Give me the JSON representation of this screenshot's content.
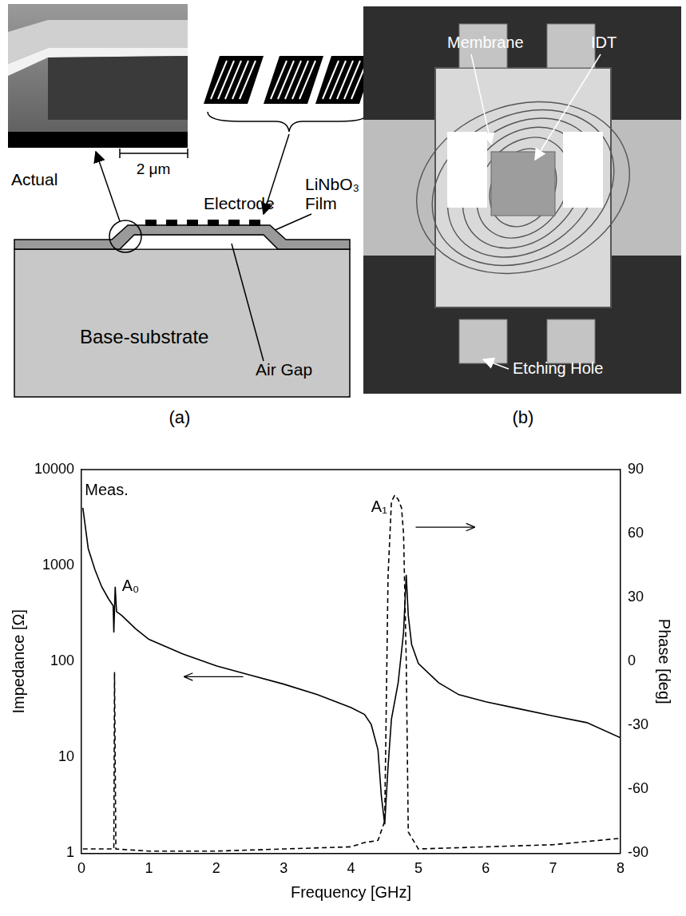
{
  "panel_a": {
    "label": "(a)",
    "inset_label": "Actual",
    "scale_bar": "2 μm",
    "electrode": "Electrode",
    "film": "LiNbO₃ Film",
    "substrate": "Base-substrate",
    "gap": "Air Gap"
  },
  "panel_b": {
    "label": "(b)",
    "membrane": "Membrane",
    "idt": "IDT",
    "hole": "Etching Hole"
  },
  "chart_data": {
    "type": "line",
    "xlabel": "Frequency [GHz]",
    "ylabel": "Impedance [Ω]",
    "y2label": "Phase [deg]",
    "xlim": [
      0,
      8
    ],
    "xticks": [
      0,
      1,
      2,
      3,
      4,
      5,
      6,
      7,
      8
    ],
    "ylim": [
      1,
      10000
    ],
    "yticks": [
      1,
      10,
      100,
      1000,
      10000
    ],
    "log": "y",
    "y2lim": [
      -90,
      90
    ],
    "y2ticks": [
      -90,
      -60,
      -30,
      0,
      30,
      60,
      90
    ],
    "grid": false,
    "series": [
      {
        "color": "#000000",
        "line_style": "solid",
        "x": [
          0.02,
          0.1,
          0.2,
          0.3,
          0.4,
          0.47,
          0.48,
          0.5,
          0.52,
          0.6,
          0.8,
          1.0,
          1.5,
          2.0,
          2.5,
          3.0,
          3.5,
          4.0,
          4.2,
          4.3,
          4.4,
          4.45,
          4.5,
          4.55,
          4.6,
          4.7,
          4.78,
          4.82,
          4.85,
          4.9,
          5.0,
          5.3,
          5.6,
          6.0,
          6.5,
          7.0,
          7.5,
          8.0
        ],
        "values": [
          4000,
          1500,
          900,
          600,
          450,
          380,
          200,
          600,
          330,
          300,
          220,
          170,
          120,
          90,
          72,
          58,
          45,
          33,
          28,
          22,
          12,
          4,
          2,
          8,
          25,
          60,
          200,
          800,
          300,
          150,
          95,
          60,
          45,
          38,
          32,
          27,
          23,
          16
        ]
      },
      {
        "color": "#000000",
        "line_style": "dashed",
        "axis": "y2",
        "x": [
          0.02,
          0.45,
          0.48,
          0.49,
          0.51,
          1.0,
          2.0,
          3.0,
          4.0,
          4.2,
          4.4,
          4.5,
          4.55,
          4.6,
          4.65,
          4.7,
          4.75,
          4.78,
          4.82,
          4.85,
          5.0,
          6.0,
          7.0,
          8.0
        ],
        "values": [
          -88,
          -88,
          -88,
          -5,
          -88,
          -89,
          -89,
          -88,
          -87,
          -85,
          -84,
          -75,
          40,
          75,
          78,
          76,
          72,
          60,
          0,
          -80,
          -88,
          -87,
          -86,
          -83
        ]
      }
    ],
    "annotations": [
      {
        "text": "Meas.",
        "x": 0.05,
        "y": 6000
      },
      {
        "text": "A₀",
        "x": 0.6,
        "y": 600
      },
      {
        "text": "A₁",
        "x": 4.3,
        "y": 4000
      }
    ]
  }
}
